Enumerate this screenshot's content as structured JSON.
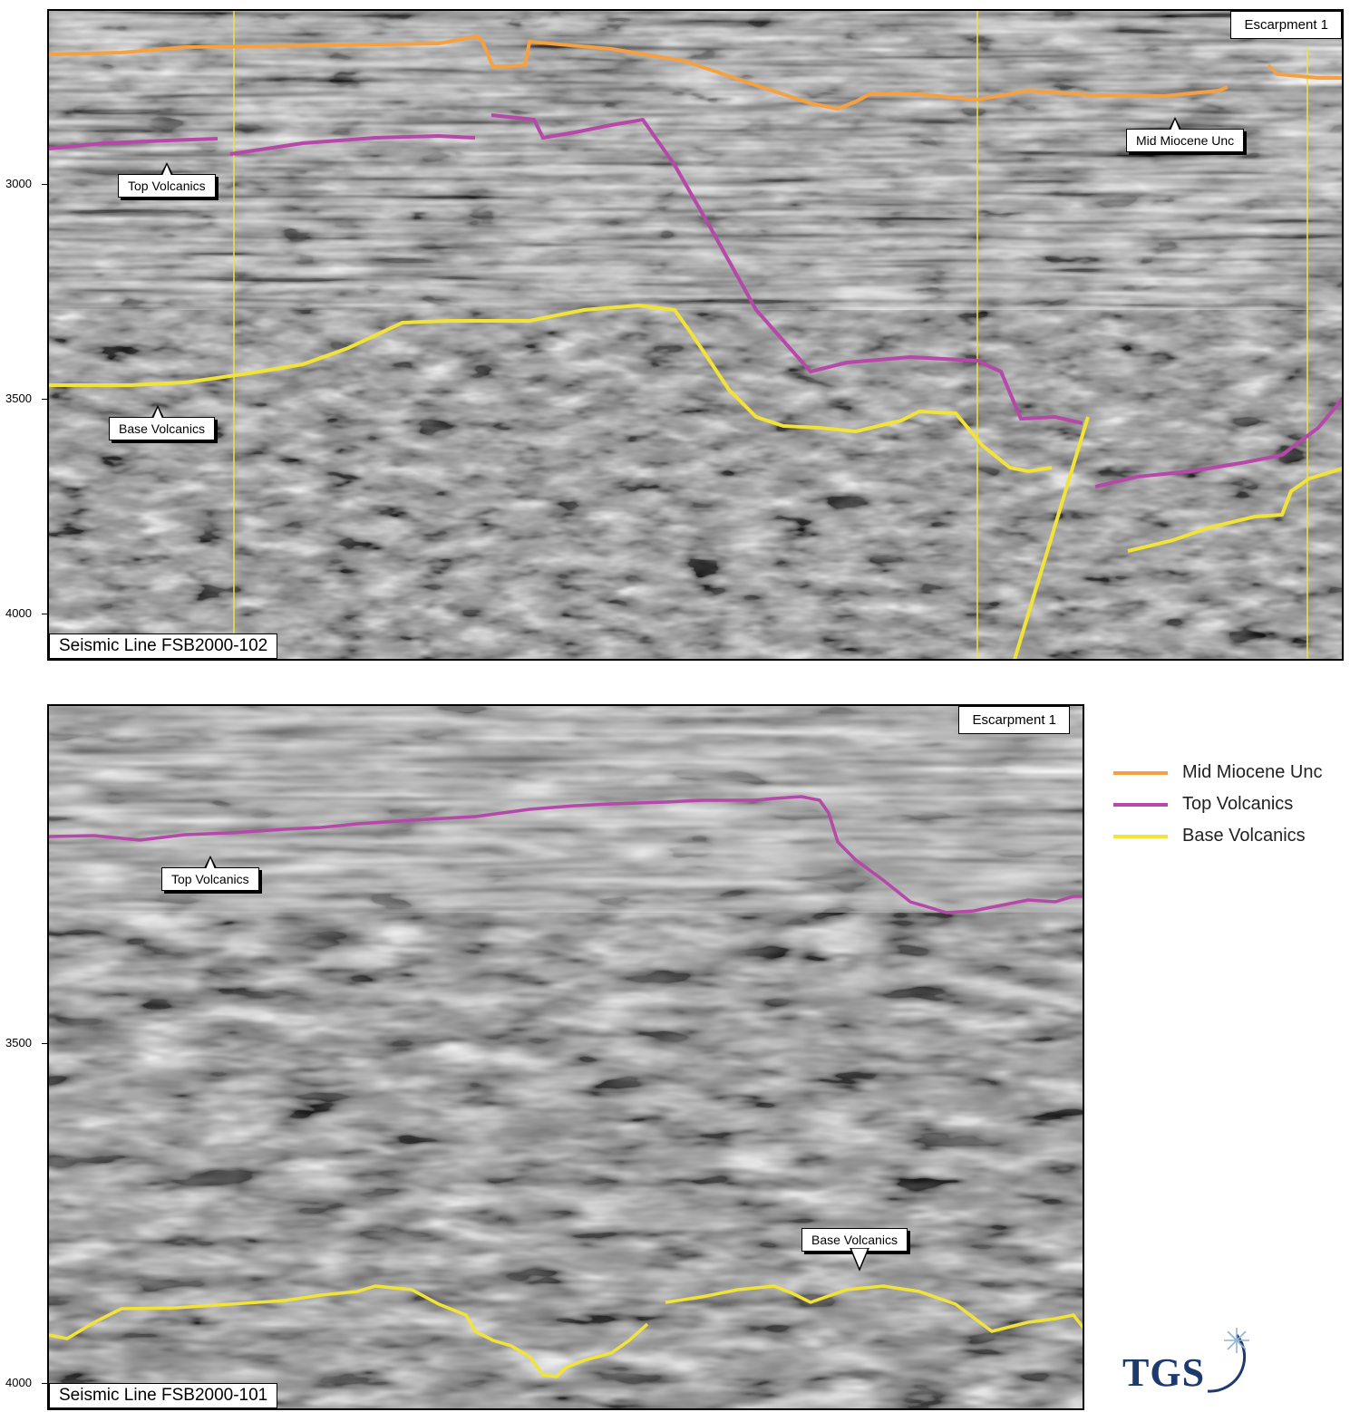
{
  "colors": {
    "mid_miocene_unc": "#f5a142",
    "top_volcanics": "#b548a8",
    "base_volcanics": "#f2e338",
    "logo": "#1c3a6e"
  },
  "top_panel": {
    "escarpment_label": "Escarpment 1",
    "seismic_line_label": "Seismic Line FSB2000-102",
    "y_ticks": [
      "3000",
      "3500",
      "4000"
    ],
    "callouts": {
      "mid_miocene": "Mid Miocene Unc",
      "top_volcanics": "Top Volcanics",
      "base_volcanics": "Base Volcanics"
    }
  },
  "bottom_panel": {
    "escarpment_label": "Escarpment 1",
    "seismic_line_label": "Seismic Line FSB2000-101",
    "y_ticks": [
      "3500",
      "4000"
    ],
    "callouts": {
      "top_volcanics": "Top Volcanics",
      "base_volcanics": "Base Volcanics"
    }
  },
  "legend": {
    "items": [
      {
        "label": "Mid Miocene Unc",
        "color": "#f5a142"
      },
      {
        "label": "Top Volcanics",
        "color": "#b548a8"
      },
      {
        "label": "Base Volcanics",
        "color": "#f2e338"
      }
    ]
  },
  "logo": {
    "text": "TGS",
    "icon": "star-burst-icon"
  }
}
